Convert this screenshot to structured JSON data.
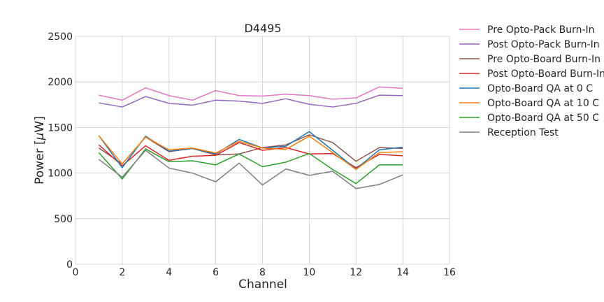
{
  "chart_data": {
    "type": "line",
    "title": "D4495",
    "xlabel": "Channel",
    "ylabel": "Power [",
    "ylabel_symbol": "μ",
    "ylabel_unit": "W]",
    "xlim": [
      0,
      16
    ],
    "ylim": [
      0,
      2500
    ],
    "xticks": [
      0,
      2,
      4,
      6,
      8,
      10,
      12,
      14,
      16
    ],
    "yticks": [
      0,
      500,
      1000,
      1500,
      2000,
      2500
    ],
    "grid": true,
    "legend_position": "outside-right",
    "x": [
      1,
      2,
      3,
      4,
      5,
      6,
      7,
      8,
      9,
      10,
      11,
      12,
      13,
      14
    ],
    "series": [
      {
        "name": "Pre Opto-Pack Burn-In",
        "color": "#e377c2",
        "values": [
          1855,
          1800,
          1935,
          1850,
          1800,
          1905,
          1850,
          1845,
          1865,
          1850,
          1810,
          1825,
          1945,
          1930
        ]
      },
      {
        "name": "Post Opto-Pack Burn-In",
        "color": "#9467bd",
        "values": [
          1770,
          1725,
          1840,
          1765,
          1745,
          1800,
          1790,
          1765,
          1815,
          1755,
          1725,
          1765,
          1855,
          1850
        ]
      },
      {
        "name": "Pre Opto-Board Burn-In",
        "color": "#8c564b",
        "values": [
          1275,
          1100,
          1395,
          1235,
          1270,
          1200,
          1210,
          1280,
          1310,
          1420,
          1335,
          1130,
          1280,
          1270
        ]
      },
      {
        "name": "Post Opto-Board Burn-In",
        "color": "#d62728",
        "values": [
          1310,
          1080,
          1300,
          1140,
          1185,
          1195,
          1335,
          1250,
          1280,
          1210,
          1215,
          1060,
          1205,
          1190
        ]
      },
      {
        "name": "Opto-Board QA at 0 C",
        "color": "#1f77b4",
        "values": [
          1410,
          1060,
          1405,
          1240,
          1270,
          1210,
          1370,
          1275,
          1295,
          1455,
          1250,
          1045,
          1255,
          1285
        ]
      },
      {
        "name": "Opto-Board QA at 10 C",
        "color": "#ff7f0e",
        "values": [
          1410,
          1100,
          1395,
          1255,
          1275,
          1220,
          1350,
          1275,
          1260,
          1405,
          1225,
          1040,
          1225,
          1235
        ]
      },
      {
        "name": "Opto-Board QA at 50 C",
        "color": "#2ca02c",
        "values": [
          1225,
          935,
          1265,
          1125,
          1135,
          1090,
          1210,
          1070,
          1120,
          1215,
          1040,
          885,
          1090,
          1090
        ]
      },
      {
        "name": "Reception Test",
        "color": "#7f7f7f",
        "values": [
          1150,
          955,
          1250,
          1055,
          1000,
          905,
          1110,
          870,
          1045,
          975,
          1020,
          830,
          875,
          980
        ]
      }
    ]
  }
}
